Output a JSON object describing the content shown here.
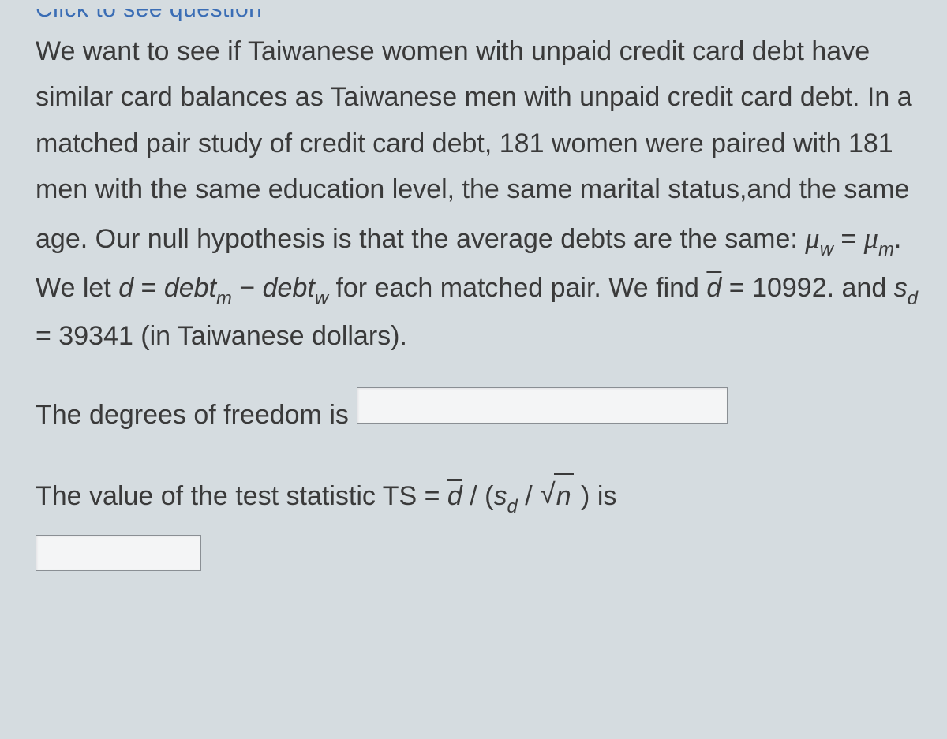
{
  "cutoff_text": "Click to see question",
  "paragraph": {
    "p1": "We want to see if Taiwanese women with unpaid credit card debt have similar card balances as Taiwanese men with unpaid credit card debt. In a matched pair study of credit card debt, 181 women were paired with 181 men with the same education level, the same marital status,and the same age. Our null hypothesis is that the average debts are the same: ",
    "mu_w": "μ",
    "sub_w": "w",
    "eq1": " = ",
    "mu_m": "μ",
    "sub_m": "m",
    "period1": ". ",
    "p2": "We let ",
    "d": "d",
    "eq2": " = ",
    "debt1": "debt",
    "sub_m2": "m",
    "minus": " − ",
    "debt2": "debt",
    "sub_w2": "w",
    "p3": " for each matched pair. We find ",
    "dbar": "d",
    "eq3": " = 10992. and ",
    "s1": "s",
    "sub_d1": "d",
    "eq4": " = 39341 (in Taiwanese dollars)."
  },
  "q1_label": "The degrees of freedom is",
  "q2": {
    "pre": "The value of the test statistic TS = ",
    "dbar": "d",
    "slash1": " / (",
    "s": "s",
    "sub_d": "d",
    "slash2": " / ",
    "n": "n",
    "close": " ) is"
  },
  "style": {
    "bg": "#d5dce0",
    "text_color": "#3a3a3a",
    "link_color": "#3a6db5",
    "input_bg": "#f4f5f6",
    "input_border": "#8a8f94",
    "font_size_body": 34,
    "line_height": 1.72
  }
}
